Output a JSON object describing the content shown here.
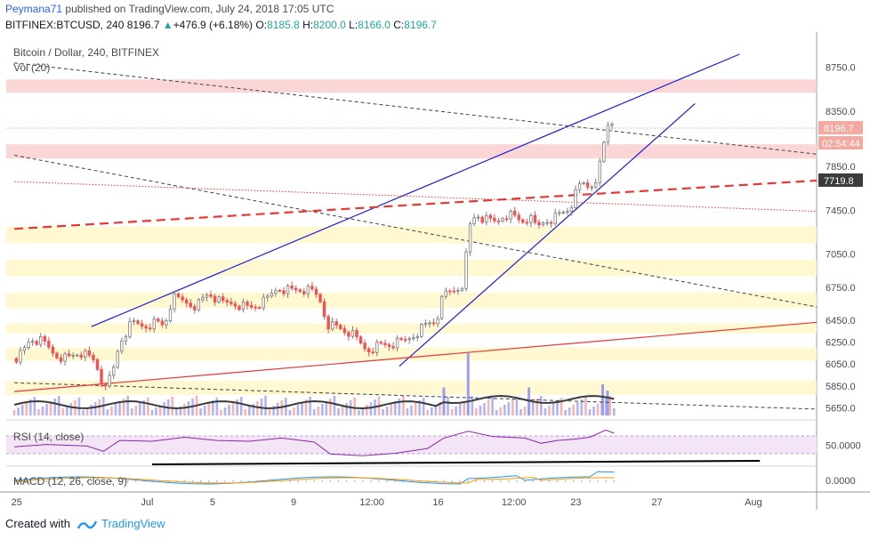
{
  "header": {
    "author": "Peymana71",
    "published_text": "published on TradingView.com, July 24, 2018 17:05 UTC",
    "symbol": "BITFINEX:BTCUSD, 240",
    "last": "8196.7",
    "change": "+476.9 (+6.18%)",
    "change_arrow": "▲",
    "open_label": "O:",
    "open": "8185.8",
    "high_label": "H:",
    "high": "8200.0",
    "low_label": "L:",
    "low": "8166.0",
    "close_label": "C:",
    "close": "8196.7"
  },
  "footer": {
    "created_with": "Created with",
    "brand": "TradingView"
  },
  "colors": {
    "up": "#26a69a",
    "down": "#ef5350",
    "accent": "#2962ff",
    "trendline": "#1e1ed2",
    "support": "#e53935"
  },
  "chart_data": {
    "type": "candlestick",
    "title": "Bitcoin / Dollar, 240, BITFINEX",
    "volume_label": "Vol (20)",
    "y_range": [
      5550,
      8950
    ],
    "y_ticks": [
      8750,
      8350,
      7850,
      7450,
      7050,
      6750,
      6450,
      6250,
      6050,
      5850,
      5650
    ],
    "x_range": [
      0,
      100
    ],
    "x_ticks": [
      {
        "label": "25",
        "x": 1.5
      },
      {
        "label": "Jul",
        "x": 17.5
      },
      {
        "label": "5",
        "x": 26
      },
      {
        "label": "9",
        "x": 36
      },
      {
        "label": "12:00",
        "x": 44.5
      },
      {
        "label": "16",
        "x": 53.5
      },
      {
        "label": "12:00",
        "x": 62
      },
      {
        "label": "23",
        "x": 70.5
      },
      {
        "label": "27",
        "x": 80.5
      },
      {
        "label": "Aug",
        "x": 92
      }
    ],
    "last_price_label": "8196.7",
    "countdown_label": "02:54:44",
    "level_label": "7719.8",
    "bands": [
      {
        "type": "pink",
        "from": 8520,
        "to": 8640
      },
      {
        "type": "pink",
        "from": 7920,
        "to": 8050
      },
      {
        "type": "yellow",
        "from": 7150,
        "to": 7300
      },
      {
        "type": "yellow",
        "from": 6850,
        "to": 7000
      },
      {
        "type": "yellow",
        "from": 6560,
        "to": 6700
      },
      {
        "type": "yellow",
        "from": 6330,
        "to": 6420
      },
      {
        "type": "yellow",
        "from": 6080,
        "to": 6200
      },
      {
        "type": "yellow",
        "from": 5770,
        "to": 5900
      }
    ],
    "trendlines": [
      {
        "name": "channel-upper",
        "points": [
          [
            10.5,
            6390
          ],
          [
            90.5,
            8870
          ]
        ],
        "style": "solid",
        "color": "#1e1ed2"
      },
      {
        "name": "channel-lower",
        "points": [
          [
            48.5,
            6030
          ],
          [
            85,
            8420
          ]
        ],
        "style": "solid",
        "color": "#1e1ed2"
      },
      {
        "name": "resistance-dashed-1",
        "points": [
          [
            1,
            8790
          ],
          [
            100,
            7960
          ]
        ],
        "style": "dashed",
        "color": "#424242"
      },
      {
        "name": "resistance-dashed-2",
        "points": [
          [
            1,
            7950
          ],
          [
            100,
            6570
          ]
        ],
        "style": "dashed",
        "color": "#424242"
      },
      {
        "name": "support-dashed",
        "points": [
          [
            1,
            5880
          ],
          [
            100,
            5640
          ]
        ],
        "style": "dashed",
        "color": "#424242"
      },
      {
        "name": "red-dashed-thick",
        "points": [
          [
            1,
            7280
          ],
          [
            100,
            7720
          ]
        ],
        "style": "dashed-thick",
        "color": "#e53935"
      },
      {
        "name": "red-dotted",
        "points": [
          [
            1,
            7710
          ],
          [
            100,
            7440
          ]
        ],
        "style": "dotted",
        "color": "#e53935"
      },
      {
        "name": "red-support",
        "points": [
          [
            1,
            5800
          ],
          [
            100,
            6430
          ]
        ],
        "style": "solid",
        "color": "#e53935"
      }
    ],
    "price_path": [
      [
        1,
        6100
      ],
      [
        2,
        6150
      ],
      [
        3,
        6280
      ],
      [
        4.5,
        6250
      ],
      [
        6,
        6140
      ],
      [
        7.5,
        6100
      ],
      [
        9,
        6160
      ],
      [
        11,
        6070
      ],
      [
        11.8,
        5880
      ],
      [
        13,
        5920
      ],
      [
        14,
        6250
      ],
      [
        15.5,
        6420
      ],
      [
        17,
        6400
      ],
      [
        18.5,
        6430
      ],
      [
        19.5,
        6400
      ],
      [
        20.5,
        6650
      ],
      [
        22,
        6620
      ],
      [
        23.5,
        6580
      ],
      [
        25,
        6700
      ],
      [
        26.5,
        6600
      ],
      [
        28,
        6610
      ],
      [
        30,
        6560
      ],
      [
        32,
        6620
      ],
      [
        33.5,
        6750
      ],
      [
        35,
        6720
      ],
      [
        36.5,
        6730
      ],
      [
        38,
        6700
      ],
      [
        39,
        6600
      ],
      [
        39.5,
        6420
      ],
      [
        41,
        6380
      ],
      [
        42.5,
        6330
      ],
      [
        43.5,
        6250
      ],
      [
        44.5,
        6180
      ],
      [
        46,
        6220
      ],
      [
        47.5,
        6230
      ],
      [
        49,
        6250
      ],
      [
        50.5,
        6330
      ],
      [
        52,
        6420
      ],
      [
        53,
        6440
      ],
      [
        54,
        6680
      ],
      [
        55.5,
        6730
      ],
      [
        56.5,
        6800
      ],
      [
        57,
        7270
      ],
      [
        58,
        7420
      ],
      [
        59,
        7360
      ],
      [
        60.5,
        7340
      ],
      [
        61.5,
        7420
      ],
      [
        62.5,
        7400
      ],
      [
        63.5,
        7350
      ],
      [
        64.5,
        7380
      ],
      [
        65.5,
        7290
      ],
      [
        66.5,
        7360
      ],
      [
        67.5,
        7380
      ],
      [
        68.5,
        7420
      ],
      [
        69.5,
        7470
      ],
      [
        70.3,
        7600
      ],
      [
        71,
        7700
      ],
      [
        72,
        7660
      ],
      [
        72.8,
        7750
      ],
      [
        73.5,
        7920
      ],
      [
        74,
        8180
      ],
      [
        74.6,
        8280
      ],
      [
        75,
        8200
      ]
    ],
    "volume_spikes": [
      {
        "x": 57,
        "height": 1.0
      },
      {
        "x": 54,
        "height": 0.45
      },
      {
        "x": 64.5,
        "height": 0.45
      },
      {
        "x": 73.6,
        "height": 0.5
      },
      {
        "x": 74.2,
        "height": 0.4
      }
    ],
    "rsi": {
      "label": "RSI (14, close)",
      "y_tick": "50.0000",
      "path": [
        [
          1,
          46
        ],
        [
          5,
          52
        ],
        [
          10,
          48
        ],
        [
          12,
          35
        ],
        [
          14,
          62
        ],
        [
          18,
          60
        ],
        [
          22,
          70
        ],
        [
          26,
          62
        ],
        [
          30,
          60
        ],
        [
          34,
          68
        ],
        [
          38,
          58
        ],
        [
          40,
          28
        ],
        [
          44,
          24
        ],
        [
          48,
          30
        ],
        [
          52,
          42
        ],
        [
          54,
          68
        ],
        [
          57,
          85
        ],
        [
          60,
          72
        ],
        [
          64,
          68
        ],
        [
          66,
          55
        ],
        [
          68,
          62
        ],
        [
          70,
          65
        ],
        [
          72,
          70
        ],
        [
          74,
          88
        ],
        [
          75,
          80
        ]
      ]
    },
    "macd": {
      "label": "MACD (12, 26, close, 9)",
      "y_tick": "0.0000"
    }
  }
}
